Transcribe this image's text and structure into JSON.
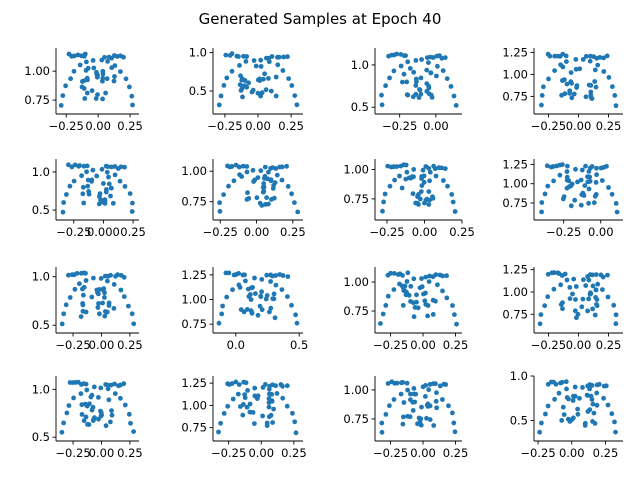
{
  "title": "Generated Samples at Epoch 40",
  "point_color": "#1f77b4",
  "chart_data": [
    {
      "type": "scatter",
      "xticks": [
        -0.25,
        0.0,
        0.25
      ],
      "xtick_labels": [
        "−0.25",
        "0.00",
        "0.25"
      ],
      "yticks": [
        0.75,
        1.0
      ],
      "ytick_labels": [
        "0.75",
        "1.00"
      ],
      "xlim": [
        -0.33,
        0.32
      ],
      "ylim": [
        0.63,
        1.2
      ]
    },
    {
      "type": "scatter",
      "xticks": [
        -0.25,
        0.0,
        0.25
      ],
      "xtick_labels": [
        "−0.25",
        "0.00",
        "0.25"
      ],
      "yticks": [
        0.5,
        1.0
      ],
      "ytick_labels": [
        "0.5",
        "1.0"
      ],
      "xlim": [
        -0.34,
        0.34
      ],
      "ylim": [
        0.2,
        1.06
      ]
    },
    {
      "type": "scatter",
      "xticks": [
        -0.25,
        0.0
      ],
      "xtick_labels": [
        "−0.25",
        "0.00"
      ],
      "yticks": [
        0.5,
        1.0
      ],
      "ytick_labels": [
        "0.5",
        "1.0"
      ],
      "xlim": [
        -0.42,
        0.18
      ],
      "ylim": [
        0.42,
        1.2
      ]
    },
    {
      "type": "scatter",
      "xticks": [
        -0.25,
        0.0,
        0.25
      ],
      "xtick_labels": [
        "−0.25",
        "0.00",
        "0.25"
      ],
      "yticks": [
        0.75,
        1.0,
        1.25
      ],
      "ytick_labels": [
        "0.75",
        "1.00",
        "1.25"
      ],
      "xlim": [
        -0.37,
        0.37
      ],
      "ylim": [
        0.55,
        1.3
      ]
    },
    {
      "type": "scatter",
      "xticks": [
        -0.25,
        0.0,
        0.25
      ],
      "xtick_labels": [
        "−0.25",
        "0.000",
        "0.25"
      ],
      "yticks": [
        0.5,
        1.0
      ],
      "ytick_labels": [
        "0.5",
        "1.0"
      ],
      "xlim": [
        -0.4,
        0.3
      ],
      "ylim": [
        0.37,
        1.17
      ]
    },
    {
      "type": "scatter",
      "xticks": [
        -0.25,
        0.0,
        0.25
      ],
      "xtick_labels": [
        "−0.25",
        "0.00",
        "0.25"
      ],
      "yticks": [
        0.75,
        1.0
      ],
      "ytick_labels": [
        "0.75",
        "1.00"
      ],
      "xlim": [
        -0.3,
        0.32
      ],
      "ylim": [
        0.6,
        1.1
      ]
    },
    {
      "type": "scatter",
      "xticks": [
        -0.25,
        0.0,
        0.25
      ],
      "xtick_labels": [
        "−0.25",
        "0.00",
        "0.25"
      ],
      "yticks": [
        0.75,
        1.0
      ],
      "ytick_labels": [
        "0.75",
        "1.00"
      ],
      "xlim": [
        -0.33,
        0.25
      ],
      "ylim": [
        0.57,
        1.09
      ]
    },
    {
      "type": "scatter",
      "xticks": [
        -0.25,
        0.0
      ],
      "xtick_labels": [
        "−0.25",
        "0.00"
      ],
      "yticks": [
        0.75,
        1.0,
        1.25
      ],
      "ytick_labels": [
        "0.75",
        "1.00",
        "1.25"
      ],
      "xlim": [
        -0.45,
        0.15
      ],
      "ylim": [
        0.53,
        1.32
      ]
    },
    {
      "type": "scatter",
      "xticks": [
        -0.25,
        0.0,
        0.25
      ],
      "xtick_labels": [
        "−0.25",
        "0.00",
        "0.25"
      ],
      "yticks": [
        0.5,
        1.0
      ],
      "ytick_labels": [
        "0.5",
        "1.0"
      ],
      "xlim": [
        -0.4,
        0.33
      ],
      "ylim": [
        0.42,
        1.1
      ]
    },
    {
      "type": "scatter",
      "xticks": [
        0.0,
        0.5
      ],
      "xtick_labels": [
        "0.0",
        "0.5"
      ],
      "yticks": [
        0.75,
        1.0,
        1.25
      ],
      "ytick_labels": [
        "0.75",
        "1.00",
        "1.25"
      ],
      "xlim": [
        -0.18,
        0.53
      ],
      "ylim": [
        0.66,
        1.33
      ]
    },
    {
      "type": "scatter",
      "xticks": [
        -0.25,
        0.0,
        0.25
      ],
      "xtick_labels": [
        "−0.25",
        "0.00",
        "0.25"
      ],
      "yticks": [
        0.75,
        1.0
      ],
      "ytick_labels": [
        "0.75",
        "1.00"
      ],
      "xlim": [
        -0.37,
        0.3
      ],
      "ylim": [
        0.56,
        1.13
      ]
    },
    {
      "type": "scatter",
      "xticks": [
        -0.25,
        0.0,
        0.25
      ],
      "xtick_labels": [
        "−0.25",
        "0.00",
        "0.25"
      ],
      "yticks": [
        0.75,
        1.0,
        1.25
      ],
      "ytick_labels": [
        "0.75",
        "1.00",
        "1.25"
      ],
      "xlim": [
        -0.37,
        0.37
      ],
      "ylim": [
        0.54,
        1.28
      ]
    },
    {
      "type": "scatter",
      "xticks": [
        -0.25,
        0.0,
        0.25
      ],
      "xtick_labels": [
        "−0.25",
        "0.00",
        "0.25"
      ],
      "yticks": [
        0.5,
        1.0
      ],
      "ytick_labels": [
        "0.5",
        "1.0"
      ],
      "xlim": [
        -0.4,
        0.33
      ],
      "ylim": [
        0.46,
        1.14
      ]
    },
    {
      "type": "scatter",
      "xticks": [
        -0.25,
        0.0,
        0.25
      ],
      "xtick_labels": [
        "−0.25",
        "0.00",
        "0.25"
      ],
      "yticks": [
        0.75,
        1.0,
        1.25
      ],
      "ytick_labels": [
        "0.75",
        "1.00",
        "1.25"
      ],
      "xlim": [
        -0.37,
        0.32
      ],
      "ylim": [
        0.6,
        1.33
      ]
    },
    {
      "type": "scatter",
      "xticks": [
        -0.25,
        0.0,
        0.25
      ],
      "xtick_labels": [
        "−0.25",
        "0.00",
        "0.25"
      ],
      "yticks": [
        0.75,
        1.0
      ],
      "ytick_labels": [
        "0.75",
        "1.00"
      ],
      "xlim": [
        -0.37,
        0.3
      ],
      "ylim": [
        0.56,
        1.12
      ]
    },
    {
      "type": "scatter",
      "xticks": [
        -0.25,
        0.0,
        0.25
      ],
      "xtick_labels": [
        "−0.25",
        "0.00",
        "0.25"
      ],
      "yticks": [
        0.5,
        1.0
      ],
      "ytick_labels": [
        "0.5",
        "1.0"
      ],
      "xlim": [
        -0.28,
        0.38
      ],
      "ylim": [
        0.27,
        1.0
      ]
    }
  ]
}
